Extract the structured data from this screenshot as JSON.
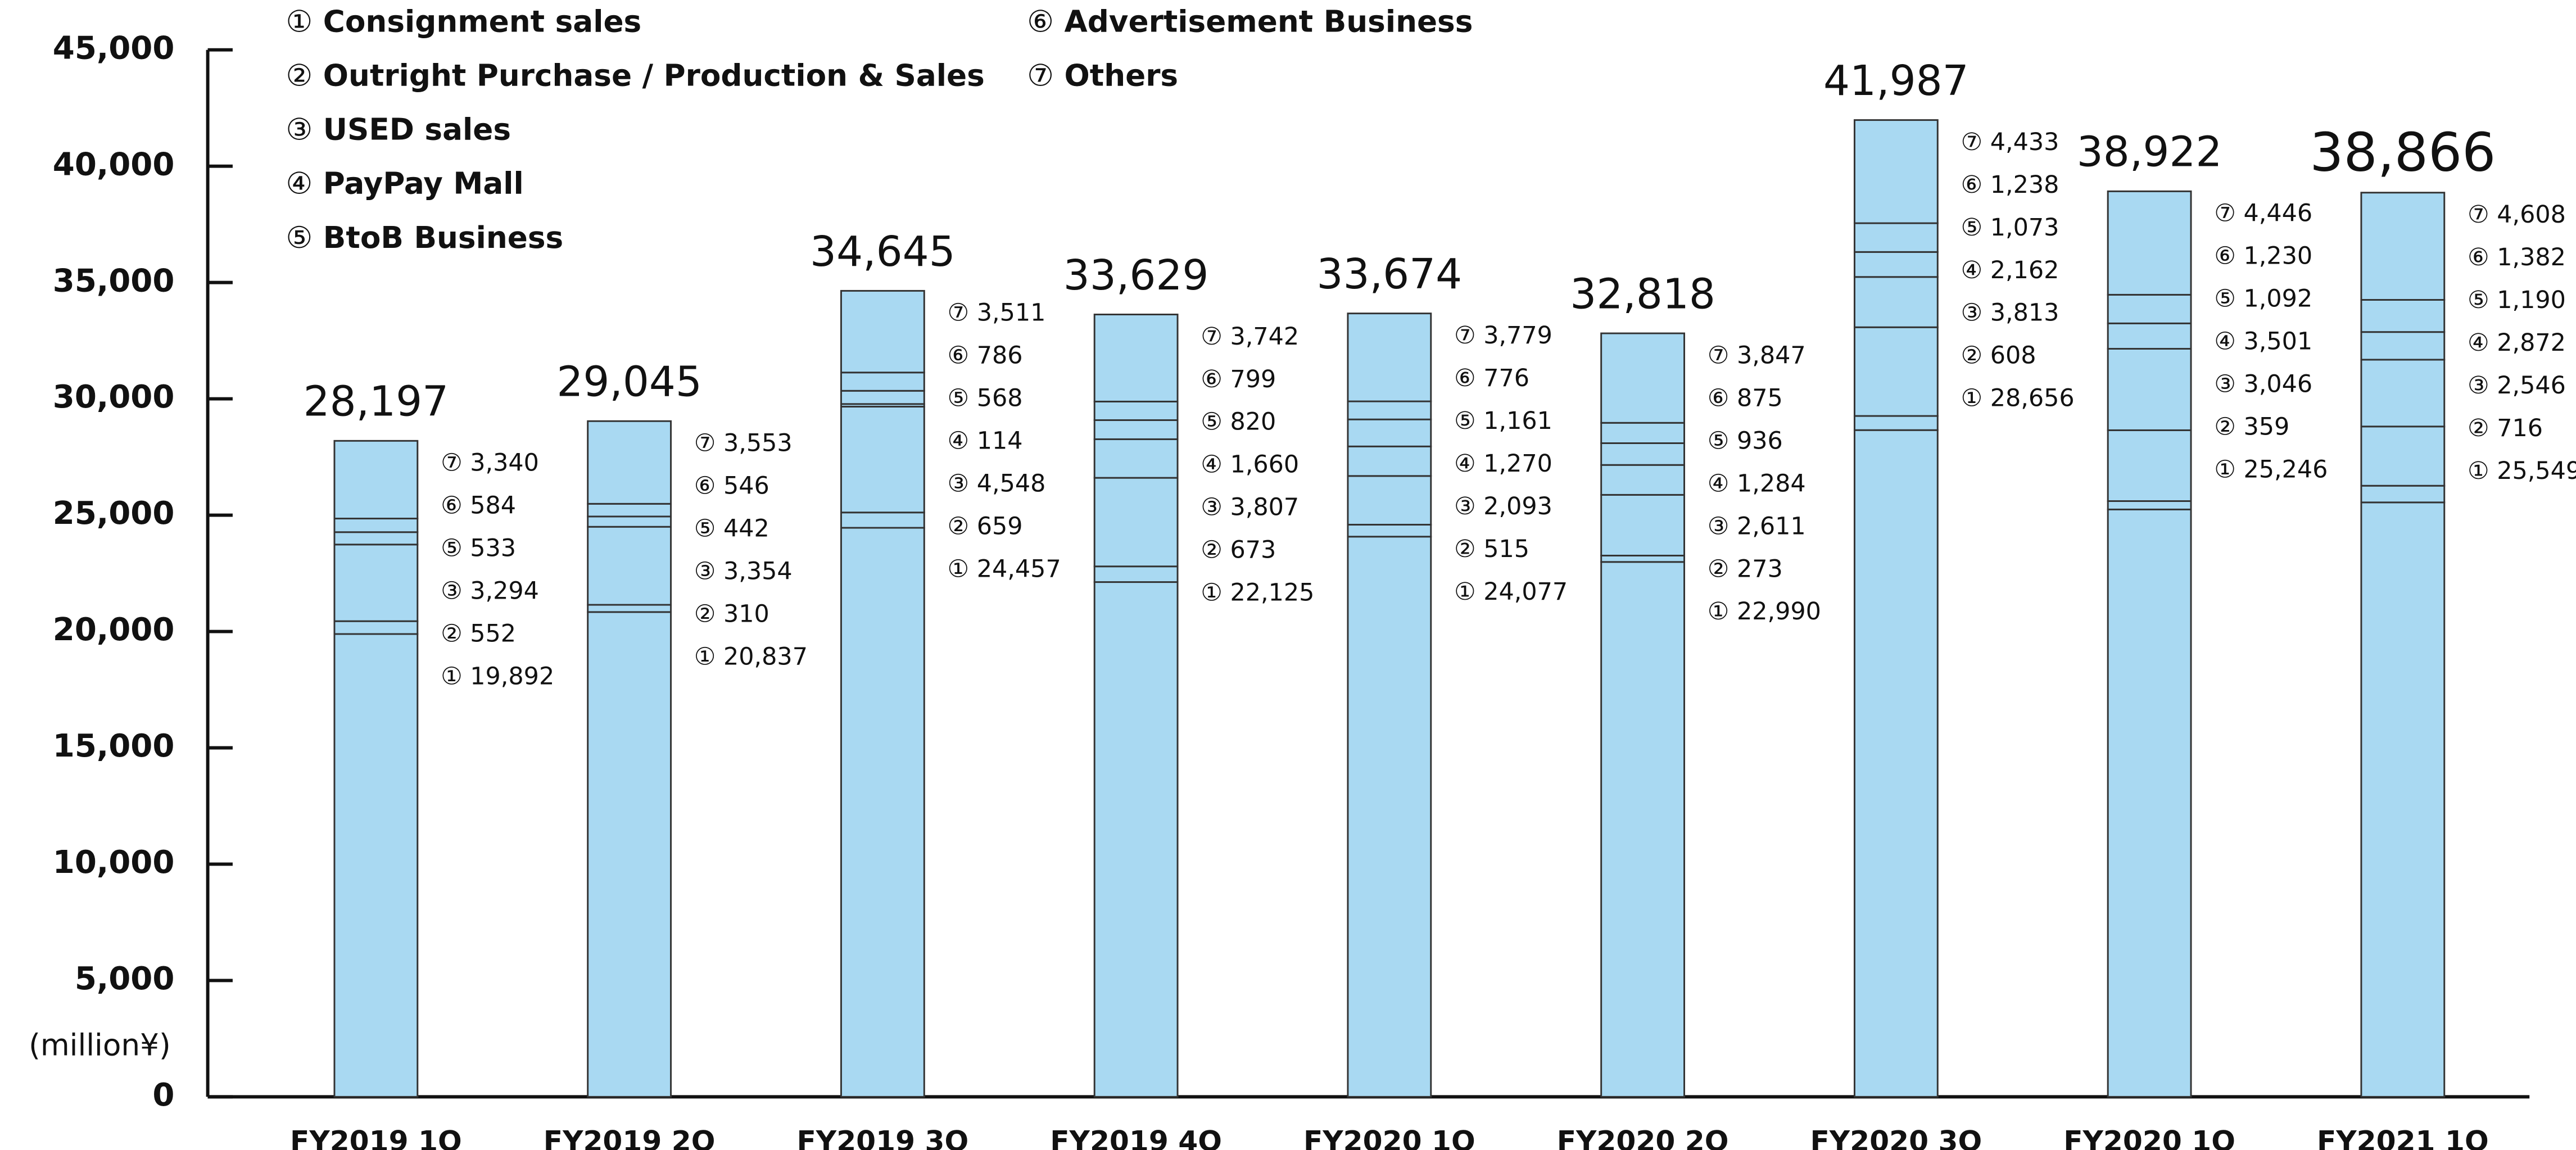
{
  "chart_data": {
    "type": "stacked_bar",
    "y_unit_label": "(million¥)",
    "categories": [
      "FY2019 1Q",
      "FY2019 2Q",
      "FY2019 3Q",
      "FY2019 4Q",
      "FY2020 1Q",
      "FY2020 2Q",
      "FY2020 3Q",
      "FY2020 1Q",
      "FY2021 1Q"
    ],
    "series": [
      {
        "marker": "①",
        "name": "Consignment sales",
        "color": "#a9d9f2",
        "values": [
          19892,
          20837,
          24457,
          22125,
          24077,
          22990,
          28656,
          25246,
          25549
        ]
      },
      {
        "marker": "②",
        "name": "Outright Purchase / Production & Sales",
        "color": "#a9d9f2",
        "values": [
          552,
          310,
          659,
          673,
          515,
          273,
          608,
          359,
          716
        ]
      },
      {
        "marker": "③",
        "name": "USED sales",
        "color": "#a9d9f2",
        "values": [
          3294,
          3354,
          4548,
          3807,
          2093,
          2611,
          3813,
          3046,
          2546
        ]
      },
      {
        "marker": "④",
        "name": "PayPay Mall",
        "color": "#a9d9f2",
        "values": [
          null,
          null,
          114,
          1660,
          1270,
          1284,
          2162,
          3501,
          2872
        ]
      },
      {
        "marker": "⑤",
        "name": "BtoB Business",
        "color": "#a9d9f2",
        "values": [
          533,
          442,
          568,
          820,
          1161,
          936,
          1073,
          1092,
          1190
        ]
      },
      {
        "marker": "⑥",
        "name": "Advertisement Business",
        "color": "#a9d9f2",
        "values": [
          584,
          546,
          786,
          799,
          776,
          875,
          1238,
          1230,
          1382
        ]
      },
      {
        "marker": "⑦",
        "name": "Others",
        "color": "#a9d9f2",
        "values": [
          3340,
          3553,
          3511,
          3742,
          3779,
          3847,
          4433,
          4446,
          4608
        ]
      }
    ],
    "totals": [
      28197,
      29045,
      34645,
      33629,
      33674,
      32818,
      41987,
      38922,
      38866
    ],
    "ylim": [
      0,
      45000
    ],
    "yticks": [
      0,
      {
        "value": 5000,
        "label": "5,000"
      },
      {
        "value": 10000,
        "label": "10,000"
      },
      {
        "value": 15000,
        "label": "15,000"
      },
      {
        "value": 20000,
        "label": "20,000"
      },
      {
        "value": 25000,
        "label": "25,000"
      },
      {
        "value": 30000,
        "label": "30,000"
      },
      {
        "value": 35000,
        "label": "35,000"
      },
      {
        "value": 40000,
        "label": "40,000"
      },
      {
        "value": 45000,
        "label": "45,000"
      }
    ]
  }
}
